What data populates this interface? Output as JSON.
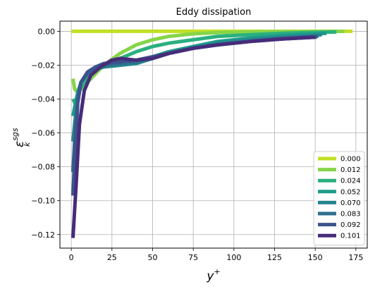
{
  "chart_data": {
    "type": "line",
    "title": "Eddy dissipation",
    "xlabel_base": "y",
    "xlabel_sup": "+",
    "ylabel_base": "ε",
    "ylabel_sub": "k",
    "ylabel_sup": "sgs",
    "xlim": [
      -7,
      182
    ],
    "ylim": [
      -0.128,
      0.006
    ],
    "xticks": [
      0,
      25,
      50,
      75,
      100,
      125,
      150,
      175
    ],
    "yticks": [
      0.0,
      -0.02,
      -0.04,
      -0.06,
      -0.08,
      -0.1,
      -0.12
    ],
    "ytick_labels": [
      "0.00",
      "−0.02",
      "−0.04",
      "−0.06",
      "−0.08",
      "−0.10",
      "−0.12"
    ],
    "grid": true,
    "legend_position": "lower-right",
    "series": [
      {
        "name": "0.000",
        "color": "#c2df23",
        "x": [
          0,
          10,
          50,
          100,
          150,
          173
        ],
        "y": [
          0,
          0,
          0,
          0,
          0,
          0
        ]
      },
      {
        "name": "0.012",
        "color": "#86d549",
        "x": [
          1,
          2,
          4,
          6,
          10,
          15,
          20,
          30,
          40,
          50,
          60,
          75,
          90,
          110,
          130,
          150,
          168
        ],
        "y": [
          -0.028,
          -0.034,
          -0.036,
          -0.034,
          -0.03,
          -0.025,
          -0.02,
          -0.013,
          -0.008,
          -0.005,
          -0.003,
          -0.0015,
          -0.0008,
          -0.0004,
          -0.0002,
          -0.0001,
          -5e-05
        ]
      },
      {
        "name": "0.024",
        "color": "#2ab07f",
        "x": [
          1,
          2,
          4,
          6,
          10,
          15,
          20,
          30,
          40,
          50,
          60,
          75,
          90,
          110,
          130,
          150,
          163
        ],
        "y": [
          -0.04,
          -0.042,
          -0.038,
          -0.033,
          -0.027,
          -0.023,
          -0.02,
          -0.016,
          -0.012,
          -0.009,
          -0.007,
          -0.005,
          -0.003,
          -0.002,
          -0.0012,
          -0.0006,
          -0.0004
        ]
      },
      {
        "name": "0.052",
        "color": "#1e9b8a",
        "x": [
          1,
          2,
          4,
          6,
          10,
          15,
          20,
          30,
          40,
          50,
          60,
          75,
          90,
          110,
          130,
          150,
          157
        ],
        "y": [
          -0.05,
          -0.045,
          -0.036,
          -0.03,
          -0.025,
          -0.022,
          -0.021,
          -0.02,
          -0.018,
          -0.015,
          -0.012,
          -0.009,
          -0.006,
          -0.004,
          -0.0025,
          -0.0015,
          -0.0012
        ]
      },
      {
        "name": "0.070",
        "color": "#25858e",
        "x": [
          1,
          2,
          4,
          6,
          10,
          15,
          20,
          30,
          40,
          50,
          60,
          75,
          90,
          110,
          130,
          150,
          154
        ],
        "y": [
          -0.065,
          -0.055,
          -0.038,
          -0.03,
          -0.025,
          -0.022,
          -0.021,
          -0.02,
          -0.019,
          -0.016,
          -0.013,
          -0.01,
          -0.007,
          -0.005,
          -0.0035,
          -0.0025,
          -0.002
        ]
      },
      {
        "name": "0.083",
        "color": "#2e6f8e",
        "x": [
          1,
          2,
          4,
          6,
          10,
          15,
          20,
          30,
          40,
          50,
          60,
          75,
          90,
          110,
          130,
          150,
          152
        ],
        "y": [
          -0.083,
          -0.065,
          -0.04,
          -0.03,
          -0.025,
          -0.022,
          -0.02,
          -0.019,
          -0.018,
          -0.016,
          -0.013,
          -0.01,
          -0.008,
          -0.006,
          -0.004,
          -0.003,
          -0.0028
        ]
      },
      {
        "name": "0.092",
        "color": "#3a548c",
        "x": [
          1,
          2,
          4,
          6,
          10,
          15,
          20,
          30,
          40,
          50,
          60,
          75,
          90,
          110,
          130,
          150,
          151
        ],
        "y": [
          -0.097,
          -0.075,
          -0.042,
          -0.03,
          -0.024,
          -0.021,
          -0.019,
          -0.018,
          -0.017,
          -0.015,
          -0.013,
          -0.01,
          -0.008,
          -0.006,
          -0.0045,
          -0.0035,
          -0.0034
        ]
      },
      {
        "name": "0.101",
        "color": "#472c7a",
        "x": [
          1,
          3,
          5,
          8,
          12,
          18,
          25,
          30,
          40,
          50,
          60,
          75,
          90,
          110,
          130,
          150
        ],
        "y": [
          -0.122,
          -0.09,
          -0.055,
          -0.035,
          -0.026,
          -0.021,
          -0.017,
          -0.016,
          -0.017,
          -0.016,
          -0.013,
          -0.01,
          -0.008,
          -0.006,
          -0.0045,
          -0.0035
        ]
      }
    ]
  }
}
